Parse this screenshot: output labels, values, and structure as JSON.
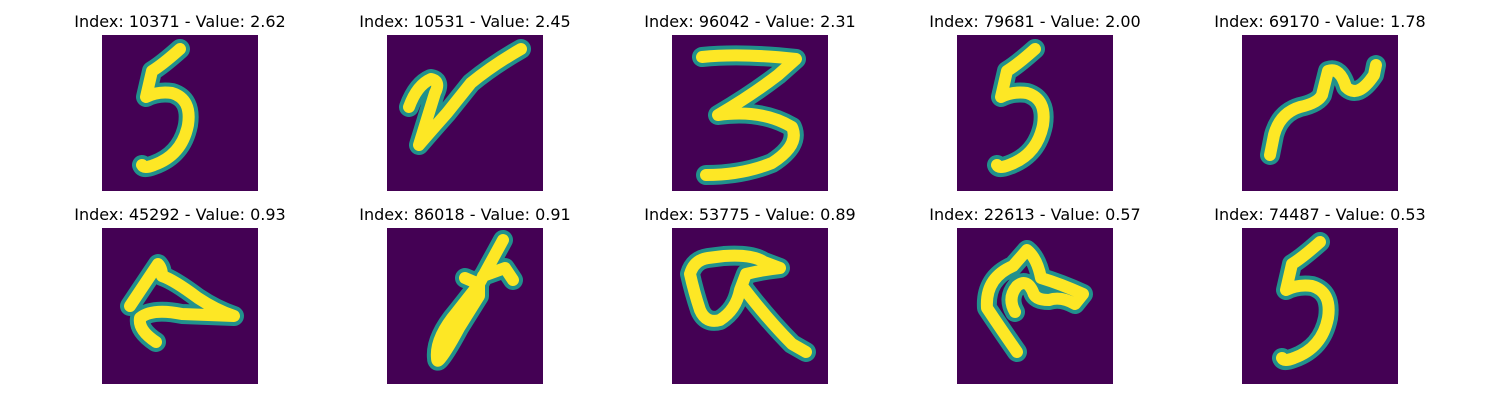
{
  "title_labels": {
    "index": "Index: ",
    "value": "Value: ",
    "separator": " - "
  },
  "colors": {
    "background": "#440154",
    "stroke": "#fde725",
    "edge": "#21918c"
  },
  "thumbnails": [
    {
      "index": "10371",
      "value": "2.62",
      "depicts": "5"
    },
    {
      "index": "10531",
      "value": "2.45",
      "depicts": "y"
    },
    {
      "index": "96042",
      "value": "2.31",
      "depicts": "3"
    },
    {
      "index": "79681",
      "value": "2.00",
      "depicts": "5"
    },
    {
      "index": "69170",
      "value": "1.78",
      "depicts": "squiggle"
    },
    {
      "index": "45292",
      "value": "0.93",
      "depicts": "z"
    },
    {
      "index": "86018",
      "value": "0.91",
      "depicts": "loop-cross"
    },
    {
      "index": "53775",
      "value": "0.89",
      "depicts": "alpha"
    },
    {
      "index": "22613",
      "value": "0.57",
      "depicts": "hook"
    },
    {
      "index": "74487",
      "value": "0.53",
      "depicts": "5"
    }
  ]
}
